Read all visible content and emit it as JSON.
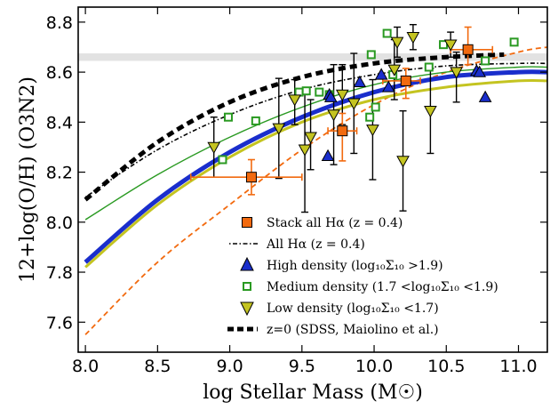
{
  "chart_data": {
    "type": "scatter",
    "xlabel": "log Stellar Mass (M☉)",
    "ylabel": "12+log(O/H)  (O3N2)",
    "xlim": [
      7.95,
      11.2
    ],
    "ylim": [
      7.48,
      8.86
    ],
    "x_ticks": [
      8.0,
      8.5,
      9.0,
      9.5,
      10.0,
      10.5,
      11.0
    ],
    "y_ticks": [
      7.6,
      7.8,
      8.0,
      8.2,
      8.4,
      8.6,
      8.8
    ],
    "x_tick_labels": [
      "8.0",
      "8.5",
      "9.0",
      "9.5",
      "10.0",
      "10.5",
      "11.0"
    ],
    "y_tick_labels": [
      "7.6",
      "7.8",
      "8.0",
      "8.2",
      "8.4",
      "8.6",
      "8.8"
    ],
    "grid": false,
    "legend_position": "lower-right",
    "colors": {
      "stack": "#f26a0f",
      "high": "#1a2ecc",
      "medium": "#2a9a22",
      "low": "#c4c421",
      "sdss": "#000000",
      "band": "#e2e2e2"
    },
    "band": {
      "y": [
        8.645,
        8.675
      ]
    },
    "legend": [
      {
        "key": "stack",
        "label": "Stack all Hα (z = 0.4)"
      },
      {
        "key": "all",
        "label": "All Hα (z = 0.4)"
      },
      {
        "key": "high",
        "label": "High density (log₁₀Σ₁₀ >1.9)"
      },
      {
        "key": "medium",
        "label": "Medium density (1.7 <log₁₀Σ₁₀ <1.9)"
      },
      {
        "key": "low",
        "label": "Low density (log₁₀Σ₁₀ <1.7)"
      },
      {
        "key": "sdss",
        "label": "z=0 (SDSS, Maiolino et al.)"
      }
    ],
    "curves": {
      "stack_fit": {
        "x": [
          8.0,
          8.5,
          9.0,
          9.5,
          10.0,
          10.5,
          11.0,
          11.2
        ],
        "y": [
          7.84,
          8.09,
          8.28,
          8.42,
          8.52,
          8.58,
          8.6,
          8.6
        ]
      },
      "all_fit": {
        "x": [
          8.0,
          8.5,
          9.0,
          9.5,
          10.0,
          10.5,
          11.0,
          11.2
        ],
        "y": [
          8.1,
          8.29,
          8.43,
          8.53,
          8.59,
          8.625,
          8.635,
          8.635
        ]
      },
      "high_fit": {
        "x": [
          8.0,
          8.5,
          9.0,
          9.5,
          10.0,
          10.5,
          11.0,
          11.2
        ],
        "y": [
          7.84,
          8.09,
          8.28,
          8.42,
          8.52,
          8.58,
          8.6,
          8.6
        ]
      },
      "medium_fit": {
        "x": [
          8.0,
          8.5,
          9.0,
          9.5,
          10.0,
          10.5,
          11.0,
          11.2
        ],
        "y": [
          8.01,
          8.19,
          8.34,
          8.46,
          8.55,
          8.6,
          8.62,
          8.62
        ]
      },
      "low_fit": {
        "x": [
          8.0,
          8.5,
          9.0,
          9.5,
          10.0,
          10.5,
          11.0,
          11.2
        ],
        "y": [
          7.82,
          8.07,
          8.26,
          8.4,
          8.49,
          8.54,
          8.565,
          8.565
        ]
      },
      "orange_fit": {
        "x": [
          8.0,
          8.5,
          9.0,
          9.5,
          10.0,
          10.5,
          11.0,
          11.2
        ],
        "y": [
          7.55,
          7.84,
          8.07,
          8.29,
          8.47,
          8.6,
          8.68,
          8.7
        ]
      },
      "sdss": {
        "x": [
          8.0,
          8.5,
          9.0,
          9.5,
          10.0,
          10.5,
          10.9
        ],
        "y": [
          8.09,
          8.32,
          8.48,
          8.58,
          8.635,
          8.66,
          8.67
        ]
      }
    },
    "series": [
      {
        "key": "stack",
        "points": [
          {
            "x": 9.15,
            "y": 8.18,
            "xerr": [
              0.42,
              0.35
            ],
            "yerr": [
              0.07,
              0.07
            ]
          },
          {
            "x": 9.78,
            "y": 8.365,
            "xerr": [
              0.1,
              0.1
            ],
            "yerr": [
              0.12,
              0.07
            ]
          },
          {
            "x": 10.22,
            "y": 8.565,
            "xerr": [
              0.16,
              0.1
            ],
            "yerr": [
              0.07,
              0.05
            ]
          },
          {
            "x": 10.65,
            "y": 8.69,
            "xerr": [
              0.12,
              0.17
            ],
            "yerr": [
              0.06,
              0.09
            ]
          }
        ]
      },
      {
        "key": "high",
        "points": [
          {
            "x": 9.68,
            "y": 8.265
          },
          {
            "x": 9.69,
            "y": 8.51
          },
          {
            "x": 9.7,
            "y": 8.5
          },
          {
            "x": 9.9,
            "y": 8.56
          },
          {
            "x": 10.05,
            "y": 8.59
          },
          {
            "x": 10.1,
            "y": 8.54
          },
          {
            "x": 10.71,
            "y": 8.605
          },
          {
            "x": 10.77,
            "y": 8.5
          },
          {
            "x": 10.73,
            "y": 8.6
          }
        ]
      },
      {
        "key": "medium",
        "points": [
          {
            "x": 8.95,
            "y": 8.25
          },
          {
            "x": 8.99,
            "y": 8.42
          },
          {
            "x": 9.18,
            "y": 8.405
          },
          {
            "x": 9.48,
            "y": 8.52
          },
          {
            "x": 9.53,
            "y": 8.525
          },
          {
            "x": 9.62,
            "y": 8.52
          },
          {
            "x": 9.69,
            "y": 8.51
          },
          {
            "x": 9.98,
            "y": 8.67
          },
          {
            "x": 9.97,
            "y": 8.42
          },
          {
            "x": 10.01,
            "y": 8.46
          },
          {
            "x": 10.09,
            "y": 8.755
          },
          {
            "x": 10.13,
            "y": 8.59
          },
          {
            "x": 10.38,
            "y": 8.62
          },
          {
            "x": 10.48,
            "y": 8.71
          },
          {
            "x": 10.77,
            "y": 8.645
          },
          {
            "x": 10.97,
            "y": 8.72
          }
        ]
      },
      {
        "key": "low",
        "points": [
          {
            "x": 8.89,
            "y": 8.3,
            "yerr": [
              0.12,
              0.12
            ]
          },
          {
            "x": 9.34,
            "y": 8.375,
            "yerr": [
              0.2,
              0.2
            ]
          },
          {
            "x": 9.45,
            "y": 8.49,
            "yerr": [
              0.1,
              0.08
            ]
          },
          {
            "x": 9.52,
            "y": 8.29,
            "yerr": [
              0.25,
              0.22
            ]
          },
          {
            "x": 9.56,
            "y": 8.34,
            "yerr": [
              0.13,
              0.15
            ]
          },
          {
            "x": 9.72,
            "y": 8.43,
            "yerr": [
              0.2,
              0.2
            ]
          },
          {
            "x": 9.78,
            "y": 8.51,
            "yerr": [
              0.12,
              0.12
            ]
          },
          {
            "x": 9.86,
            "y": 8.475,
            "yerr": [
              0.2,
              0.2
            ]
          },
          {
            "x": 9.99,
            "y": 8.37,
            "yerr": [
              0.2,
              0.2
            ]
          },
          {
            "x": 10.14,
            "y": 8.61,
            "yerr": [
              0.12,
              0.12
            ]
          },
          {
            "x": 10.16,
            "y": 8.72,
            "yerr": [
              0.06,
              0.06
            ]
          },
          {
            "x": 10.2,
            "y": 8.245,
            "yerr": [
              0.2,
              0.2
            ]
          },
          {
            "x": 10.27,
            "y": 8.74,
            "yerr": [
              0.05,
              0.05
            ]
          },
          {
            "x": 10.39,
            "y": 8.445,
            "yerr": [
              0.17,
              0.17
            ]
          },
          {
            "x": 10.53,
            "y": 8.71,
            "yerr": [
              0.05,
              0.05
            ]
          },
          {
            "x": 10.57,
            "y": 8.6,
            "yerr": [
              0.12,
              0.08
            ]
          }
        ]
      }
    ]
  }
}
